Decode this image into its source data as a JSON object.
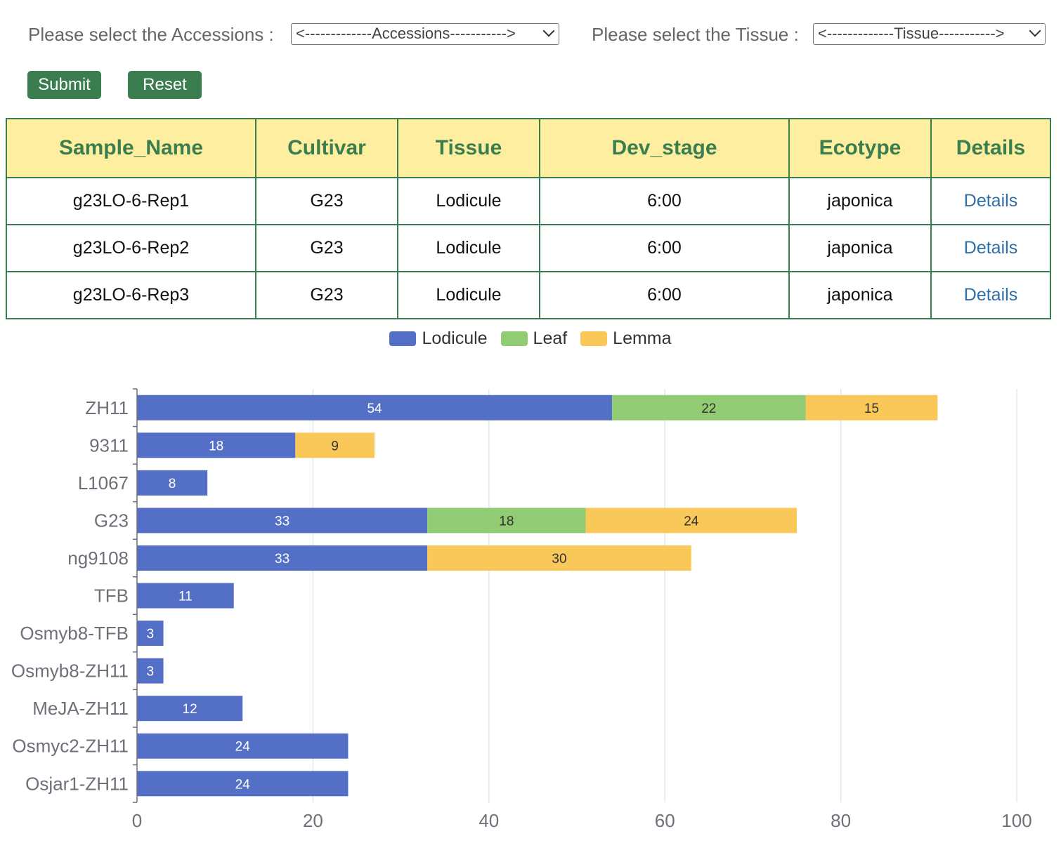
{
  "filters": {
    "accession_label": "Please select the Accessions :",
    "accession_value": "<-------------Accessions----------->",
    "tissue_label": "Please select the Tissue :",
    "tissue_value": "<-------------Tissue----------->"
  },
  "buttons": {
    "submit": "Submit",
    "reset": "Reset"
  },
  "table": {
    "headers": [
      "Sample_Name",
      "Cultivar",
      "Tissue",
      "Dev_stage",
      "Ecotype",
      "Details"
    ],
    "rows": [
      [
        "g23LO-6-Rep1",
        "G23",
        "Lodicule",
        "6:00",
        "japonica",
        "Details"
      ],
      [
        "g23LO-6-Rep2",
        "G23",
        "Lodicule",
        "6:00",
        "japonica",
        "Details"
      ],
      [
        "g23LO-6-Rep3",
        "G23",
        "Lodicule",
        "6:00",
        "japonica",
        "Details"
      ]
    ]
  },
  "chart_data": {
    "type": "bar",
    "orientation": "horizontal",
    "stacked": true,
    "categories": [
      "ZH11",
      "9311",
      "L1067",
      "G23",
      "ng9108",
      "TFB",
      "Osmyb8-TFB",
      "Osmyb8-ZH11",
      "MeJA-ZH11",
      "Osmyc2-ZH11",
      "Osjar1-ZH11"
    ],
    "series": [
      {
        "name": "Lodicule",
        "color": "#5470c6",
        "values": [
          54,
          18,
          8,
          33,
          33,
          11,
          3,
          3,
          12,
          24,
          24
        ]
      },
      {
        "name": "Leaf",
        "color": "#91cc75",
        "values": [
          22,
          0,
          0,
          18,
          0,
          0,
          0,
          0,
          0,
          0,
          0
        ]
      },
      {
        "name": "Lemma",
        "color": "#fac858",
        "values": [
          15,
          9,
          0,
          24,
          30,
          0,
          0,
          0,
          0,
          0,
          0
        ]
      }
    ],
    "xlim": [
      0,
      100
    ],
    "xticks": [
      0,
      20,
      40,
      60,
      80,
      100
    ],
    "grid": true,
    "legend": "top-center"
  }
}
